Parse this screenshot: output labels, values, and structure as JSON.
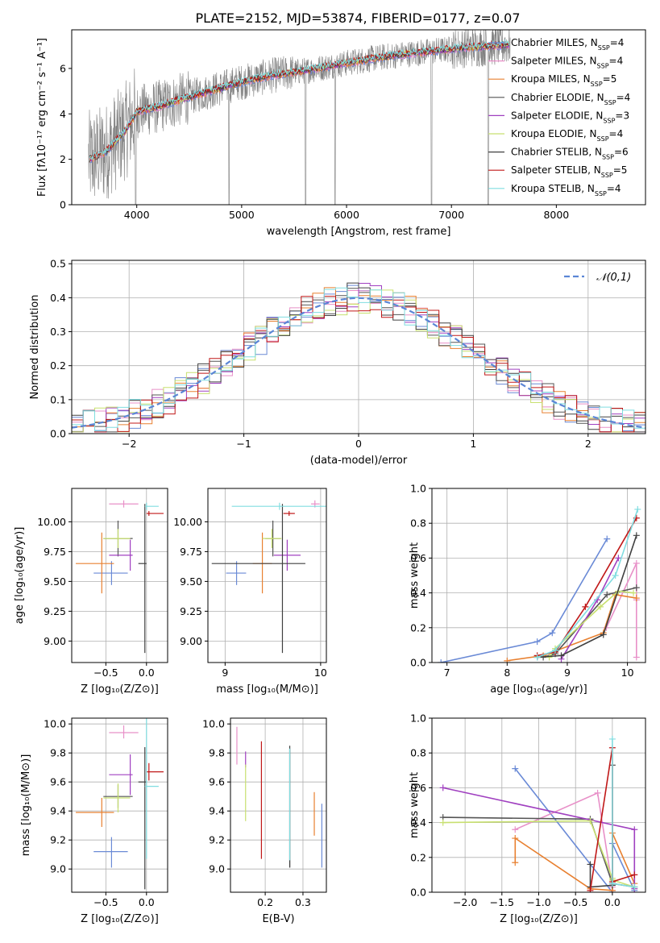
{
  "figure_title": "PLATE=2152, MJD=53874, FIBERID=0177, z=0.07",
  "colors": {
    "Chabrier MILES": "#6a8ad6",
    "Salpeter MILES": "#e890c8",
    "Kroupa MILES": "#e88030",
    "Chabrier ELODIE": "#555555",
    "Salpeter ELODIE": "#a040c0",
    "Kroupa ELODIE": "#c8e070",
    "Chabrier STELIB": "#404040",
    "Salpeter STELIB": "#c01818",
    "Kroupa STELIB": "#80dde0",
    "data": "#808080"
  },
  "legend_entries": [
    {
      "name": "Chabrier MILES",
      "nssp": "4"
    },
    {
      "name": "Salpeter MILES",
      "nssp": "4"
    },
    {
      "name": "Kroupa MILES",
      "nssp": "5"
    },
    {
      "name": "Chabrier ELODIE",
      "nssp": "4"
    },
    {
      "name": "Salpeter ELODIE",
      "nssp": "3"
    },
    {
      "name": "Kroupa ELODIE",
      "nssp": "4"
    },
    {
      "name": "Chabrier STELIB",
      "nssp": "6"
    },
    {
      "name": "Salpeter STELIB",
      "nssp": "5"
    },
    {
      "name": "Kroupa STELIB",
      "nssp": "4"
    }
  ],
  "chart_data": [
    {
      "id": "spectrum",
      "type": "line",
      "xlabel": "wavelength [Angstrom, rest frame]",
      "ylabel": "Flux [f_λ 10^-17 erg cm^-2 s^-1 A^-1]",
      "xlim": [
        3380,
        8850
      ],
      "ylim": [
        0,
        7.7
      ],
      "xticks": [
        4000,
        5000,
        6000,
        7000,
        8000
      ],
      "yticks": [
        0,
        2,
        4,
        6
      ],
      "data_anchor_points": [
        [
          3550,
          2.0
        ],
        [
          3700,
          2.3
        ],
        [
          3900,
          3.3
        ],
        [
          4000,
          4.1
        ],
        [
          4200,
          4.3
        ],
        [
          4400,
          4.6
        ],
        [
          4700,
          5.0
        ],
        [
          5000,
          5.4
        ],
        [
          5300,
          5.7
        ],
        [
          5600,
          5.9
        ],
        [
          5900,
          6.15
        ],
        [
          6200,
          6.4
        ],
        [
          6500,
          6.6
        ],
        [
          6800,
          6.75
        ],
        [
          7100,
          6.9
        ],
        [
          7400,
          7.0
        ],
        [
          7550,
          7.05
        ]
      ],
      "deep_absorption_x": [
        3990,
        4880,
        5610,
        5890,
        6810,
        7350
      ],
      "grid": false,
      "legend_position": "upper right"
    },
    {
      "id": "residuals",
      "type": "line",
      "xlabel": "(data-model)/error",
      "ylabel": "Normed distribution",
      "xlim": [
        -2.5,
        2.5
      ],
      "ylim": [
        0,
        0.51
      ],
      "xticks": [
        -2,
        -1,
        0,
        1,
        2
      ],
      "yticks": [
        0.0,
        0.1,
        0.2,
        0.3,
        0.4,
        0.5
      ],
      "reference_curve_label": "𝒩(0,1)",
      "grid": true,
      "legend_position": "upper right"
    },
    {
      "id": "z-age",
      "type": "scatter",
      "xlabel": "Z [log10(Z/Z⊙)]",
      "ylabel": "age  [log10(age/yr)]",
      "xlim": [
        -0.92,
        0.26
      ],
      "ylim": [
        8.82,
        10.28
      ],
      "xticks": [
        -0.5,
        0.0
      ],
      "yticks": [
        9.0,
        9.25,
        9.5,
        9.75,
        10.0
      ],
      "grid": true
    },
    {
      "id": "mass-age",
      "type": "scatter",
      "xlabel": "mass [log10(M/M⊙)]",
      "ylabel": "",
      "xlim": [
        8.82,
        10.06
      ],
      "ylim": [
        8.82,
        10.28
      ],
      "xticks": [
        9,
        10
      ],
      "yticks": [
        9.0,
        9.25,
        9.5,
        9.75,
        10.0
      ],
      "grid": true
    },
    {
      "id": "age-weight",
      "type": "line",
      "xlabel": "age  [log10(age/yr)]",
      "ylabel": "mass weight",
      "xlim": [
        6.75,
        10.3
      ],
      "ylim": [
        0,
        1.0
      ],
      "xticks": [
        7,
        8,
        9,
        10
      ],
      "yticks": [
        0.0,
        0.2,
        0.4,
        0.6,
        0.8,
        1.0
      ],
      "grid": true
    },
    {
      "id": "z-mass",
      "type": "scatter",
      "xlabel": "Z [log10(Z/Z⊙)]",
      "ylabel": "mass [log10(M/M⊙)]",
      "xlim": [
        -0.92,
        0.26
      ],
      "ylim": [
        8.84,
        10.04
      ],
      "xticks": [
        -0.5,
        0.0
      ],
      "yticks": [
        9.0,
        9.2,
        9.4,
        9.6,
        9.8,
        10.0
      ],
      "grid": true
    },
    {
      "id": "ebv-mass",
      "type": "scatter",
      "xlabel": "E(B-V)",
      "ylabel": "",
      "xlim": [
        0.108,
        0.362
      ],
      "ylim": [
        8.84,
        10.04
      ],
      "xticks": [
        0.2,
        0.3
      ],
      "yticks": [
        9.0,
        9.2,
        9.4,
        9.6,
        9.8,
        10.0
      ],
      "grid": true
    },
    {
      "id": "z-weight",
      "type": "line",
      "xlabel": "Z [log10(Z/Z⊙)]",
      "ylabel": "mass weight",
      "xlim": [
        -2.45,
        0.45
      ],
      "ylim": [
        0,
        1.0
      ],
      "xticks": [
        -2.0,
        -1.5,
        -1.0,
        -0.5,
        0.0
      ],
      "yticks": [
        0.0,
        0.2,
        0.4,
        0.6,
        0.8,
        1.0
      ],
      "grid": true
    }
  ],
  "model_points": [
    {
      "name": "Chabrier MILES",
      "Z": -0.43,
      "dZl": 0.22,
      "dZr": 0.2,
      "age": 9.57,
      "dAl": 0.1,
      "dAu": 0.1,
      "mass": 9.12,
      "dMl": 0.11,
      "dMu": 0.1,
      "mass_err_lo": 9.01,
      "mass_err_hi": 9.51,
      "ebv": 0.35,
      "ebv_lo": 9.01,
      "ebv_hi": 9.45,
      "age_w": [
        [
          6.9,
          0.0
        ],
        [
          8.5,
          0.12
        ],
        [
          8.75,
          0.17
        ],
        [
          9.66,
          0.71
        ]
      ],
      "z_w": [
        [
          -1.32,
          0.71
        ],
        [
          0.0,
          0.0
        ],
        [
          0.0,
          0.28
        ],
        [
          0.3,
          0.01
        ]
      ]
    },
    {
      "name": "Salpeter MILES",
      "Z": -0.28,
      "dZl": 0.18,
      "dZr": 0.18,
      "age": 10.15,
      "dAl": 0.03,
      "dAu": 0.03,
      "mass": 9.94,
      "dMl": 0.04,
      "dMu": 0.05,
      "ebv": 0.125,
      "ebv_lo": 9.72,
      "ebv_hi": 9.98,
      "age_w": [
        [
          9.65,
          0.2
        ],
        [
          10.15,
          0.57
        ],
        [
          10.15,
          0.36
        ],
        [
          10.15,
          0.03
        ]
      ],
      "z_w": [
        [
          -1.32,
          0.36
        ],
        [
          -0.2,
          0.57
        ],
        [
          0.0,
          0.03
        ],
        [
          0.0,
          0.01
        ]
      ]
    },
    {
      "name": "Kroupa MILES",
      "Z": -0.55,
      "dZl": 0.32,
      "dZr": 0.15,
      "age": 9.65,
      "dAl": 0.25,
      "dAu": 0.26,
      "mass": 9.39,
      "dMl": 0.1,
      "dMu": 0.1,
      "ebv": 0.33,
      "ebv_lo": 9.23,
      "ebv_hi": 9.53,
      "age_w": [
        [
          8.0,
          0.01
        ],
        [
          8.6,
          0.04
        ],
        [
          9.6,
          0.17
        ],
        [
          9.8,
          0.39
        ],
        [
          10.15,
          0.37
        ]
      ],
      "z_w": [
        [
          -1.32,
          0.17
        ],
        [
          -1.32,
          0.31
        ],
        [
          -0.3,
          0.02
        ],
        [
          0.0,
          0.01
        ],
        [
          0.0,
          0.34
        ],
        [
          0.3,
          0.05
        ]
      ]
    },
    {
      "name": "Chabrier ELODIE",
      "Z": -0.35,
      "dZl": 0.18,
      "dZr": 0.18,
      "age": 9.86,
      "dAl": 0.15,
      "dAu": 0.15,
      "mass": 9.5,
      "dMl": 0.08,
      "dMu": 0.08,
      "ebv": 0.265,
      "ebv_lo": 9.01,
      "ebv_hi": 9.83,
      "age_w": [
        [
          8.6,
          0.03
        ],
        [
          8.8,
          0.05
        ],
        [
          9.66,
          0.39
        ],
        [
          10.15,
          0.43
        ]
      ],
      "z_w": [
        [
          -2.3,
          0.43
        ],
        [
          -0.3,
          0.42
        ],
        [
          0.0,
          0.05
        ],
        [
          0.3,
          0.03
        ]
      ]
    },
    {
      "name": "Salpeter ELODIE",
      "Z": -0.2,
      "dZl": 0.26,
      "dZr": 0.03,
      "age": 9.72,
      "dAl": 0.13,
      "dAu": 0.13,
      "mass": 9.65,
      "dMl": 0.14,
      "dMu": 0.14,
      "ebv": 0.148,
      "ebv_lo": 9.7,
      "ebv_hi": 9.81,
      "age_w": [
        [
          8.9,
          0.02
        ],
        [
          9.5,
          0.36
        ],
        [
          9.85,
          0.6
        ]
      ],
      "z_w": [
        [
          -2.3,
          0.6
        ],
        [
          0.3,
          0.36
        ],
        [
          0.3,
          0.02
        ]
      ]
    },
    {
      "name": "Kroupa ELODIE",
      "Z": -0.35,
      "dZl": 0.18,
      "dZr": 0.15,
      "age": 9.86,
      "dAl": 0.08,
      "dAu": 0.08,
      "mass": 9.49,
      "dMl": 0.1,
      "dMu": 0.1,
      "ebv": 0.148,
      "ebv_lo": 9.33,
      "ebv_hi": 9.72,
      "age_w": [
        [
          8.7,
          0.03
        ],
        [
          8.8,
          0.08
        ],
        [
          9.55,
          0.32
        ],
        [
          9.85,
          0.41
        ],
        [
          10.1,
          0.4
        ]
      ],
      "z_w": [
        [
          -2.3,
          0.4
        ],
        [
          -0.3,
          0.41
        ],
        [
          0.0,
          0.08
        ],
        [
          0.0,
          0.07
        ],
        [
          0.3,
          0.03
        ]
      ]
    },
    {
      "name": "Chabrier STELIB",
      "Z": -0.02,
      "dZl": 0.08,
      "dZr": 0.02,
      "age": 9.65,
      "dAl": 0.75,
      "dAu": 0.5,
      "mass": 9.6,
      "dMl": 0.74,
      "dMu": 0.24,
      "ebv": 0.265,
      "ebv_lo": 9.01,
      "ebv_hi": 9.85,
      "age_w": [
        [
          8.5,
          0.03
        ],
        [
          8.9,
          0.04
        ],
        [
          9.6,
          0.16
        ],
        [
          10.15,
          0.73
        ]
      ],
      "z_w": [
        [
          -0.3,
          0.16
        ],
        [
          -0.3,
          0.03
        ],
        [
          0.0,
          0.04
        ],
        [
          0.0,
          0.73
        ]
      ]
    },
    {
      "name": "Salpeter STELIB",
      "Z": 0.03,
      "dZl": 0.03,
      "dZr": 0.18,
      "age": 10.07,
      "dAl": 0.02,
      "dAu": 0.02,
      "mass": 9.67,
      "dMl": 0.06,
      "dMu": 0.06,
      "ebv": 0.19,
      "ebv_lo": 9.07,
      "ebv_hi": 9.88,
      "age_w": [
        [
          8.5,
          0.04
        ],
        [
          8.8,
          0.06
        ],
        [
          9.3,
          0.32
        ],
        [
          10.15,
          0.83
        ]
      ],
      "z_w": [
        [
          -0.3,
          0.01
        ],
        [
          0.0,
          0.83
        ],
        [
          0.0,
          0.06
        ],
        [
          0.3,
          0.1
        ]
      ]
    },
    {
      "name": "Kroupa STELIB",
      "Z": 0.0,
      "dZl": 0.02,
      "dZr": 0.15,
      "age": 10.13,
      "dAl": 0.03,
      "dAu": 0.03,
      "mass": 9.57,
      "dMl": 0.5,
      "dMu": 0.5,
      "ebv": 0.265,
      "ebv_lo": 9.06,
      "ebv_hi": 9.83,
      "age_w": [
        [
          8.5,
          0.03
        ],
        [
          8.8,
          0.07
        ],
        [
          9.8,
          0.5
        ],
        [
          10.17,
          0.88
        ]
      ],
      "z_w": [
        [
          0.0,
          0.88
        ],
        [
          0.0,
          0.05
        ],
        [
          0.3,
          0.03
        ]
      ]
    }
  ]
}
